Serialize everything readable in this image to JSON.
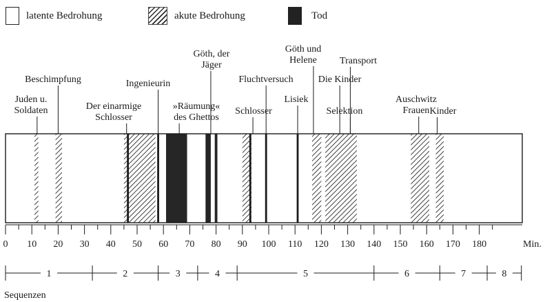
{
  "legend": {
    "latent": "latente Bedrohung",
    "acute": "akute Bedrohung",
    "death": "Tod"
  },
  "axis": {
    "unit": "Min.",
    "min": 0,
    "max": 187,
    "ticks": [
      0,
      10,
      20,
      30,
      40,
      50,
      60,
      70,
      80,
      90,
      100,
      110,
      120,
      130,
      140,
      150,
      160,
      170,
      180
    ]
  },
  "segments": [
    {
      "type": "latent",
      "start": 0,
      "end": 11
    },
    {
      "type": "acute",
      "start": 11,
      "end": 12.5
    },
    {
      "type": "latent",
      "start": 12.5,
      "end": 19
    },
    {
      "type": "acute",
      "start": 19,
      "end": 21.5
    },
    {
      "type": "latent",
      "start": 21.5,
      "end": 45
    },
    {
      "type": "acute",
      "start": 45,
      "end": 57
    },
    {
      "type": "latent",
      "start": 57,
      "end": 61
    },
    {
      "type": "death",
      "start": 61,
      "end": 69
    },
    {
      "type": "latent",
      "start": 69,
      "end": 76
    },
    {
      "type": "death",
      "start": 76,
      "end": 78
    },
    {
      "type": "latent",
      "start": 78,
      "end": 79.5
    },
    {
      "type": "death",
      "start": 79.5,
      "end": 80.5
    },
    {
      "type": "latent",
      "start": 80.5,
      "end": 90
    },
    {
      "type": "acute",
      "start": 90,
      "end": 93.5
    },
    {
      "type": "latent",
      "start": 93.5,
      "end": 116.5
    },
    {
      "type": "acute",
      "start": 116.5,
      "end": 120
    },
    {
      "type": "latent",
      "start": 120,
      "end": 121.5
    },
    {
      "type": "acute",
      "start": 121.5,
      "end": 133.5
    },
    {
      "type": "latent",
      "start": 133.5,
      "end": 154
    },
    {
      "type": "acute",
      "start": 154,
      "end": 161
    },
    {
      "type": "latent",
      "start": 161,
      "end": 163.5
    },
    {
      "type": "acute",
      "start": 163.5,
      "end": 166.5
    },
    {
      "type": "latent",
      "start": 166.5,
      "end": 196
    }
  ],
  "markers": [
    {
      "type": "death",
      "at": 46.5
    },
    {
      "type": "death",
      "at": 58
    },
    {
      "type": "death",
      "at": 93
    },
    {
      "type": "death",
      "at": 99
    },
    {
      "type": "death",
      "at": 111
    }
  ],
  "labels": [
    {
      "lines": [
        "Juden u.",
        "Soldaten"
      ],
      "at": 12
    },
    {
      "lines": [
        "Beschimpfung"
      ],
      "at": 20
    },
    {
      "lines": [
        "Der einarmige",
        "Schlosser"
      ],
      "at": 46
    },
    {
      "lines": [
        "Ingenieurin"
      ],
      "at": 58
    },
    {
      "lines": [
        "»Räumung«",
        "des Ghettos"
      ],
      "at": 66
    },
    {
      "lines": [
        "Göth, der",
        "Jäger"
      ],
      "at": 78
    },
    {
      "lines": [
        "Schlosser"
      ],
      "at": 94
    },
    {
      "lines": [
        "Fluchtversuch"
      ],
      "at": 99
    },
    {
      "lines": [
        "Lisiek"
      ],
      "at": 111
    },
    {
      "lines": [
        "Göth und",
        "Helene"
      ],
      "at": 117
    },
    {
      "lines": [
        "Die Kinder"
      ],
      "at": 127
    },
    {
      "lines": [
        "Selektion"
      ],
      "at": 131
    },
    {
      "lines": [
        "Transport"
      ],
      "at": 131
    },
    {
      "lines": [
        "Auschwitz",
        "Frauen"
      ],
      "at": 157
    },
    {
      "lines": [
        "Kinder"
      ],
      "at": 164
    }
  ],
  "sequences": {
    "title": "Sequenzen",
    "boundaries": [
      0,
      33,
      58,
      73,
      88,
      140,
      165,
      183,
      196
    ],
    "labels": [
      "1",
      "2",
      "3",
      "4",
      "5",
      "6",
      "7",
      "8"
    ]
  }
}
